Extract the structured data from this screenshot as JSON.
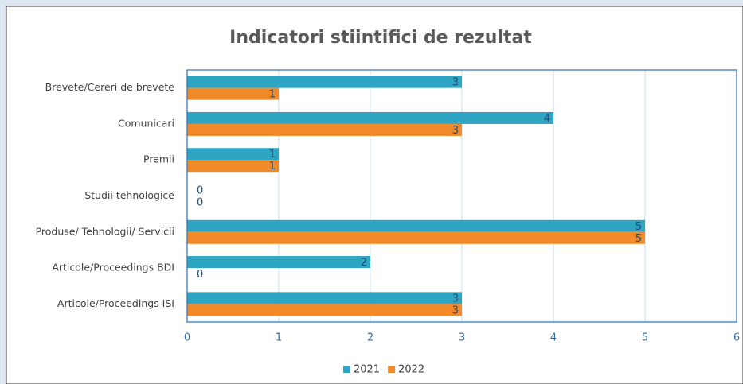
{
  "chart_data": {
    "type": "bar",
    "orientation": "horizontal",
    "title": "Indicatori stiintifici de rezultat",
    "categories": [
      "Brevete/Cereri de brevete",
      "Comunicari",
      "Premii",
      "Studii tehnologice",
      "Produse/ Tehnologii/ Servicii",
      "Articole/Proceedings BDI",
      "Articole/Proceedings ISI"
    ],
    "series": [
      {
        "name": "2021",
        "color": "#2ea5c2",
        "values": [
          3,
          4,
          1,
          0,
          5,
          2,
          3
        ]
      },
      {
        "name": "2022",
        "color": "#f28a2a",
        "values": [
          1,
          3,
          1,
          0,
          5,
          0,
          3
        ]
      }
    ],
    "xlim": [
      0,
      6
    ],
    "xticks": [
      0,
      1,
      2,
      3,
      4,
      5,
      6
    ],
    "grid": true,
    "legend": "bottom"
  }
}
